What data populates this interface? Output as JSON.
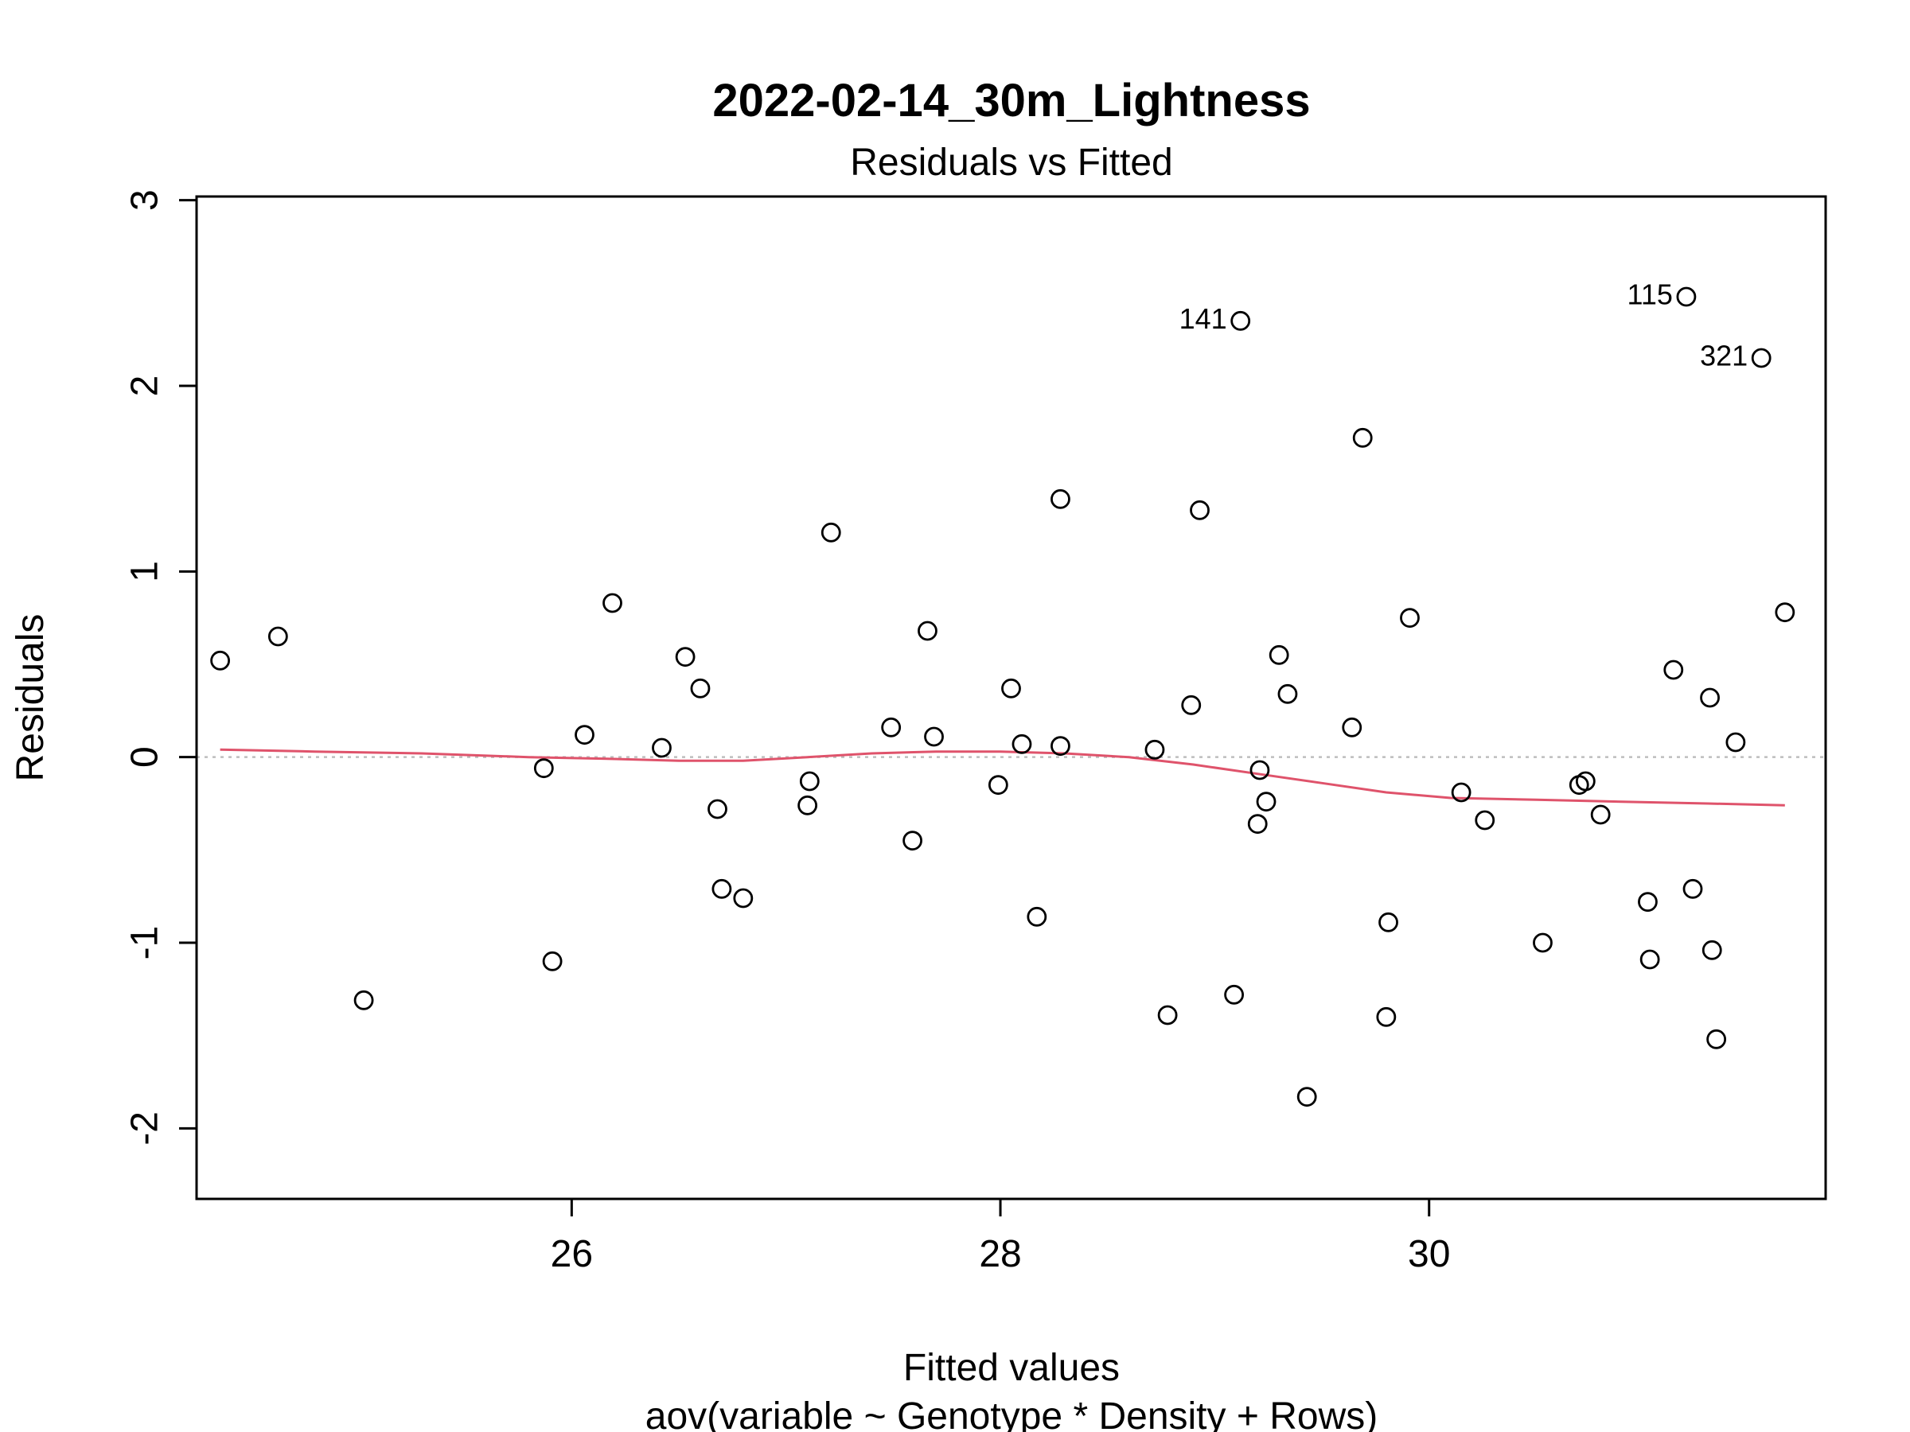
{
  "chart_data": {
    "type": "scatter",
    "title": "2022-02-14_30m_Lightness",
    "subtitle": "Residuals vs Fitted",
    "xlabel": "Fitted values",
    "xlabel2": "aov(variable ~ Genotype * Density + Rows)",
    "ylabel": "Residuals",
    "xlim": [
      24.25,
      31.85
    ],
    "ylim": [
      -2.38,
      3.02
    ],
    "x_ticks": [
      26,
      28,
      30
    ],
    "y_ticks": [
      -2,
      -1,
      0,
      1,
      2,
      3
    ],
    "x_tick_labels": [
      "26",
      "28",
      "30"
    ],
    "y_tick_labels": [
      "-2",
      "-1",
      "0",
      "1",
      "2",
      "3"
    ],
    "reference_line_y": 0,
    "colors": {
      "points": "#000000",
      "smooth": "#df536b",
      "reference": "#bebebe"
    },
    "points": [
      {
        "x": 24.36,
        "y": 0.52
      },
      {
        "x": 24.63,
        "y": 0.65
      },
      {
        "x": 25.03,
        "y": -1.31
      },
      {
        "x": 25.87,
        "y": -0.06
      },
      {
        "x": 25.91,
        "y": -1.1
      },
      {
        "x": 26.06,
        "y": 0.12
      },
      {
        "x": 26.19,
        "y": 0.83
      },
      {
        "x": 26.42,
        "y": 0.05
      },
      {
        "x": 26.53,
        "y": 0.54
      },
      {
        "x": 26.6,
        "y": 0.37
      },
      {
        "x": 26.68,
        "y": -0.28
      },
      {
        "x": 26.7,
        "y": -0.71
      },
      {
        "x": 26.8,
        "y": -0.76
      },
      {
        "x": 27.1,
        "y": -0.26
      },
      {
        "x": 27.11,
        "y": -0.13
      },
      {
        "x": 27.21,
        "y": 1.21
      },
      {
        "x": 27.49,
        "y": 0.16
      },
      {
        "x": 27.59,
        "y": -0.45
      },
      {
        "x": 27.66,
        "y": 0.68
      },
      {
        "x": 27.69,
        "y": 0.11
      },
      {
        "x": 27.99,
        "y": -0.15
      },
      {
        "x": 28.05,
        "y": 0.37
      },
      {
        "x": 28.1,
        "y": 0.07
      },
      {
        "x": 28.17,
        "y": -0.86
      },
      {
        "x": 28.28,
        "y": 1.39
      },
      {
        "x": 28.28,
        "y": 0.06
      },
      {
        "x": 28.72,
        "y": 0.04
      },
      {
        "x": 28.78,
        "y": -1.39
      },
      {
        "x": 28.89,
        "y": 0.28
      },
      {
        "x": 28.93,
        "y": 1.33
      },
      {
        "x": 29.09,
        "y": -1.28
      },
      {
        "x": 29.12,
        "y": 2.35,
        "label": "141"
      },
      {
        "x": 29.2,
        "y": -0.36
      },
      {
        "x": 29.21,
        "y": -0.07
      },
      {
        "x": 29.24,
        "y": -0.24
      },
      {
        "x": 29.3,
        "y": 0.55
      },
      {
        "x": 29.34,
        "y": 0.34
      },
      {
        "x": 29.43,
        "y": -1.83
      },
      {
        "x": 29.64,
        "y": 0.16
      },
      {
        "x": 29.69,
        "y": 1.72
      },
      {
        "x": 29.8,
        "y": -1.4
      },
      {
        "x": 29.81,
        "y": -0.89
      },
      {
        "x": 29.91,
        "y": 0.75
      },
      {
        "x": 30.15,
        "y": -0.19
      },
      {
        "x": 30.26,
        "y": -0.34
      },
      {
        "x": 30.53,
        "y": -1.0
      },
      {
        "x": 30.7,
        "y": -0.15
      },
      {
        "x": 30.73,
        "y": -0.13
      },
      {
        "x": 30.8,
        "y": -0.31
      },
      {
        "x": 31.02,
        "y": -0.78
      },
      {
        "x": 31.03,
        "y": -1.09
      },
      {
        "x": 31.14,
        "y": 0.47
      },
      {
        "x": 31.2,
        "y": 2.48,
        "label": "115"
      },
      {
        "x": 31.23,
        "y": -0.71
      },
      {
        "x": 31.31,
        "y": 0.32
      },
      {
        "x": 31.32,
        "y": -1.04
      },
      {
        "x": 31.34,
        "y": -1.52
      },
      {
        "x": 31.43,
        "y": 0.08
      },
      {
        "x": 31.55,
        "y": 2.15,
        "label": "321"
      },
      {
        "x": 31.66,
        "y": 0.78
      }
    ],
    "smooth_line": [
      {
        "x": 24.36,
        "y": 0.04
      },
      {
        "x": 24.8,
        "y": 0.03
      },
      {
        "x": 25.3,
        "y": 0.02
      },
      {
        "x": 25.8,
        "y": 0.0
      },
      {
        "x": 26.2,
        "y": -0.01
      },
      {
        "x": 26.5,
        "y": -0.02
      },
      {
        "x": 26.8,
        "y": -0.02
      },
      {
        "x": 27.1,
        "y": 0.0
      },
      {
        "x": 27.4,
        "y": 0.02
      },
      {
        "x": 27.7,
        "y": 0.03
      },
      {
        "x": 28.0,
        "y": 0.03
      },
      {
        "x": 28.3,
        "y": 0.02
      },
      {
        "x": 28.6,
        "y": 0.0
      },
      {
        "x": 28.9,
        "y": -0.04
      },
      {
        "x": 29.2,
        "y": -0.09
      },
      {
        "x": 29.5,
        "y": -0.14
      },
      {
        "x": 29.8,
        "y": -0.19
      },
      {
        "x": 30.1,
        "y": -0.22
      },
      {
        "x": 30.5,
        "y": -0.23
      },
      {
        "x": 30.9,
        "y": -0.24
      },
      {
        "x": 31.3,
        "y": -0.25
      },
      {
        "x": 31.66,
        "y": -0.26
      }
    ]
  }
}
